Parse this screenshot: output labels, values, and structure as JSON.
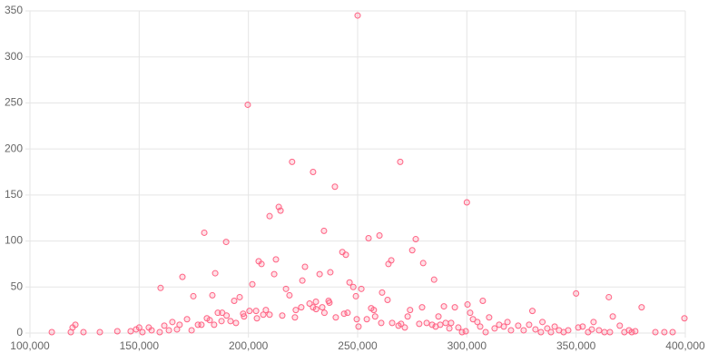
{
  "chart_data": {
    "type": "scatter",
    "color": "#ff6384",
    "grid": true,
    "x": [
      250000,
      199700,
      220000,
      229600,
      269500,
      239600,
      300000,
      213900,
      214700,
      209700,
      234600,
      179800,
      189800,
      260000,
      255000,
      276600,
      275000,
      243000,
      244600,
      204700,
      206000,
      265400,
      264100,
      280000,
      212600,
      184800,
      225900,
      232600,
      211800,
      169800,
      237500,
      285000,
      224700,
      246300,
      248000,
      201800,
      159800,
      251700,
      350000,
      365000,
      174800,
      261200,
      217200,
      218800,
      249200,
      263700,
      183500,
      196000,
      307300,
      300300,
      380000,
      294500,
      279500,
      230900,
      236700,
      193500,
      203500,
      231000,
      234800,
      243800,
      228000,
      330000,
      258000,
      272900,
      254200,
      289500,
      274000,
      287000,
      310200,
      366800,
      399600,
      358000,
      334600,
      190000,
      168500,
      186000,
      188000,
      198000,
      206800,
      215500,
      221300,
      240000,
      265800,
      268700,
      278200,
      292800,
      302800,
      304800,
      314800,
      318600,
      323500,
      340200,
      353000,
      370000,
      110000,
      118700,
      119500,
      120800,
      124500,
      132000,
      140000,
      146100,
      148600,
      150000,
      151500,
      154400,
      155700,
      159400,
      161500,
      163600,
      165200,
      167300,
      171900,
      174000,
      176900,
      178500,
      181000,
      182300,
      184300,
      187700,
      191800,
      194300,
      197600,
      200500,
      203900,
      208000,
      209700,
      221700,
      224200,
      229600,
      233800,
      237100,
      245400,
      249600,
      250400,
      256200,
      257400,
      260800,
      269900,
      271600,
      281600,
      284100,
      285700,
      287800,
      290300,
      292000,
      296100,
      297800,
      299500,
      301500,
      306100,
      308600,
      312700,
      316900,
      320200,
      326000,
      328500,
      331400,
      333900,
      336800,
      338500,
      342200,
      344300,
      346400,
      351000,
      355500,
      357200,
      360500,
      363000,
      365500,
      372100,
      374200,
      375500,
      377100,
      386300,
      390400,
      394200
    ],
    "values": [
      345,
      248,
      186,
      175,
      186,
      159,
      142,
      137,
      133,
      127,
      111,
      109,
      99,
      106,
      103,
      102,
      90,
      88,
      85,
      78,
      75,
      79,
      75,
      76,
      80,
      65,
      72,
      64,
      64,
      61,
      66,
      58,
      57,
      55,
      50,
      53,
      49,
      48,
      43,
      39,
      40,
      44,
      48,
      41,
      40,
      36,
      41,
      39,
      35,
      31,
      28,
      28,
      28,
      34,
      35,
      35,
      24,
      26,
      22,
      21,
      32,
      24,
      18,
      18,
      15,
      29,
      25,
      18,
      17,
      18,
      16,
      12,
      12,
      19,
      9,
      22,
      22,
      18,
      20,
      19,
      17,
      17,
      11,
      8,
      10,
      11,
      15,
      12,
      9,
      12,
      8,
      7,
      7,
      8,
      1,
      1,
      6,
      9,
      1,
      1,
      2,
      2,
      4,
      6,
      1,
      6,
      3,
      1,
      8,
      3,
      12,
      4,
      15,
      3,
      9,
      9,
      16,
      14,
      9,
      13,
      13,
      11,
      21,
      24,
      16,
      25,
      20,
      25,
      28,
      28,
      28,
      33,
      22,
      15,
      7,
      27,
      25,
      11,
      10,
      6,
      11,
      9,
      7,
      9,
      11,
      5,
      6,
      1,
      2,
      22,
      7,
      1,
      5,
      7,
      3,
      3,
      9,
      4,
      1,
      5,
      1,
      3,
      1,
      3,
      6,
      1,
      4,
      3,
      1,
      1,
      1,
      3,
      1,
      2,
      1,
      1,
      1
    ],
    "xlim": [
      100000,
      400000
    ],
    "xticks": [
      {
        "value": 100000,
        "label": "100,000"
      },
      {
        "value": 150000,
        "label": "150,000"
      },
      {
        "value": 200000,
        "label": "200,000"
      },
      {
        "value": 250000,
        "label": "250,000"
      },
      {
        "value": 300000,
        "label": "300,000"
      },
      {
        "value": 350000,
        "label": "350,000"
      },
      {
        "value": 400000,
        "label": "400,000"
      }
    ],
    "ylim": [
      0,
      350
    ],
    "yticks": [
      0,
      50,
      100,
      150,
      200,
      250,
      300,
      350
    ]
  }
}
